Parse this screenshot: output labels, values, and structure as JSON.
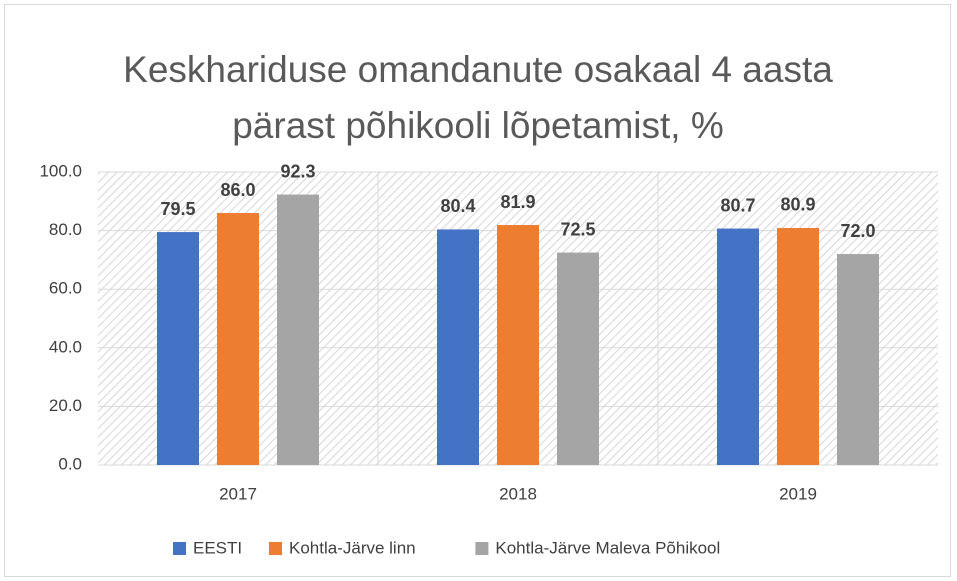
{
  "chart_data": {
    "type": "bar",
    "title": "Keskhariduse omandanute osakaal 4 aasta pärast põhikooli lõpetamist, %",
    "categories": [
      "2017",
      "2018",
      "2019"
    ],
    "series": [
      {
        "name": "EESTI",
        "color": "#4472c4",
        "values": [
          79.5,
          80.4,
          80.7
        ],
        "value_labels": [
          "79.5",
          "80.4",
          "80.7"
        ]
      },
      {
        "name": "Kohtla-Järve linn",
        "color": "#ed7d31",
        "values": [
          86,
          81.9,
          80.9
        ],
        "value_labels": [
          "86.0",
          "81.9",
          "80.9"
        ]
      },
      {
        "name": "Kohtla-Järve Maleva Põhikool",
        "color": "#a5a5a5",
        "values": [
          92.3,
          72.5,
          72
        ],
        "value_labels": [
          "92.3",
          "72.5",
          "72.0"
        ]
      }
    ],
    "ylim": [
      0,
      100
    ],
    "yticks": [
      {
        "value": 0,
        "label": "0.0"
      },
      {
        "value": 20,
        "label": "20.0"
      },
      {
        "value": 40,
        "label": "40.0"
      },
      {
        "value": 60,
        "label": "60.0"
      },
      {
        "value": 80,
        "label": "80.0"
      },
      {
        "value": 100,
        "label": "100.0"
      }
    ],
    "grid": true,
    "legend": "bottom"
  }
}
